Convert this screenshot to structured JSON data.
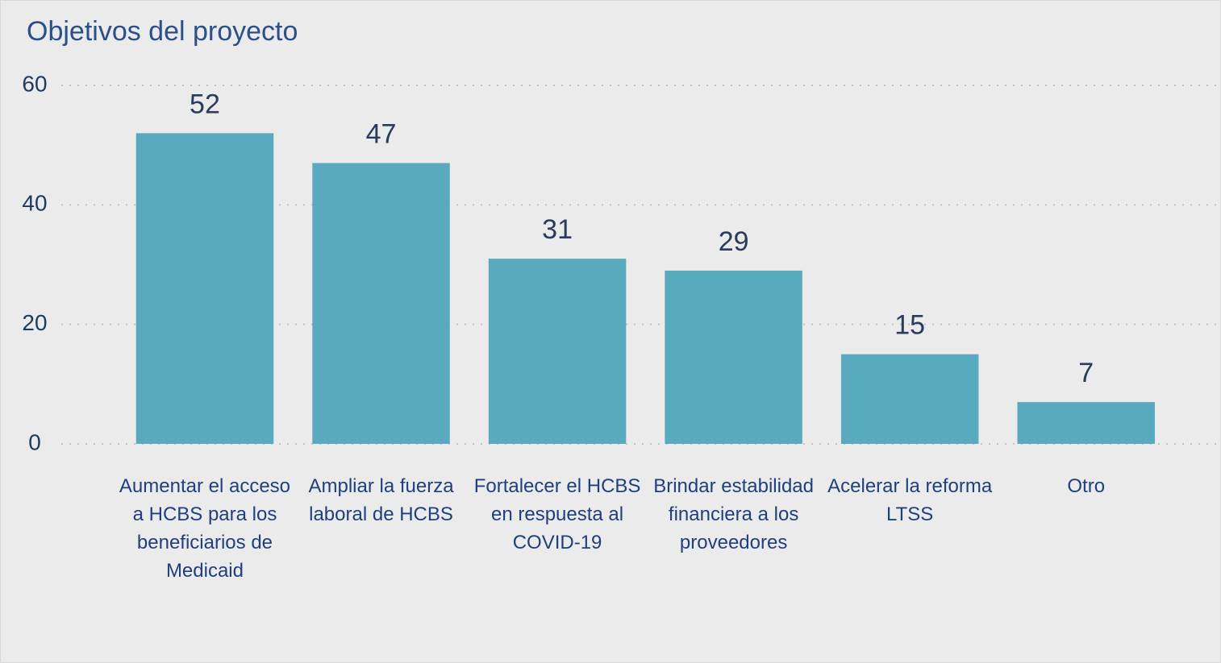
{
  "chart_data": {
    "type": "bar",
    "title": "Objetivos del proyecto",
    "categories": [
      "Aumentar el acceso a HCBS para los beneficiarios de Medicaid",
      "Ampliar la fuerza laboral de HCBS",
      "Fortalecer el HCBS en respuesta al COVID-19",
      "Brindar estabilidad financiera a los proveedores",
      "Acelerar la reforma LTSS",
      "Otro"
    ],
    "values": [
      52,
      47,
      31,
      29,
      15,
      7
    ],
    "color": "#5aaabf",
    "ylim": [
      0,
      60
    ],
    "yticks": [
      0,
      20,
      40,
      60
    ],
    "grid": true
  }
}
